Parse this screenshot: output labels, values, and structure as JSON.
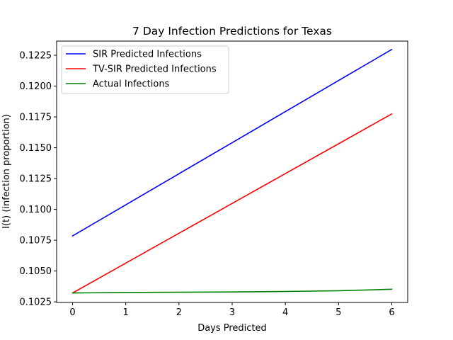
{
  "chart_data": {
    "type": "line",
    "title": "7 Day Infection Predictions for Texas",
    "xlabel": "Days Predicted",
    "ylabel": "I(t) (infection proportion)",
    "xlim": [
      -0.3,
      6.3
    ],
    "ylim": [
      0.10245,
      0.12365
    ],
    "x_ticks": [
      0,
      1,
      2,
      3,
      4,
      5,
      6
    ],
    "y_ticks": [
      0.1025,
      0.105,
      0.1075,
      0.11,
      0.1125,
      0.115,
      0.1175,
      0.12,
      0.1225
    ],
    "y_tick_labels": [
      "0.1025",
      "0.1050",
      "0.1075",
      "0.1100",
      "0.1125",
      "0.1150",
      "0.1175",
      "0.1200",
      "0.1225"
    ],
    "x": [
      0,
      1,
      2,
      3,
      4,
      5,
      6
    ],
    "series": [
      {
        "name": "SIR Predicted Infections",
        "color": "#0000ff",
        "values": [
          0.10785,
          0.11037,
          0.11289,
          0.11541,
          0.11793,
          0.12045,
          0.12297
        ]
      },
      {
        "name": "TV-SIR Predicted Infections",
        "color": "#ff0000",
        "values": [
          0.10322,
          0.10564,
          0.10806,
          0.11048,
          0.1129,
          0.11532,
          0.11774
        ]
      },
      {
        "name": "Actual Infections",
        "color": "#008000",
        "values": [
          0.10322,
          0.10326,
          0.10328,
          0.1033,
          0.10334,
          0.1034,
          0.10352
        ]
      }
    ],
    "grid": false,
    "legend_position": "top-left"
  }
}
